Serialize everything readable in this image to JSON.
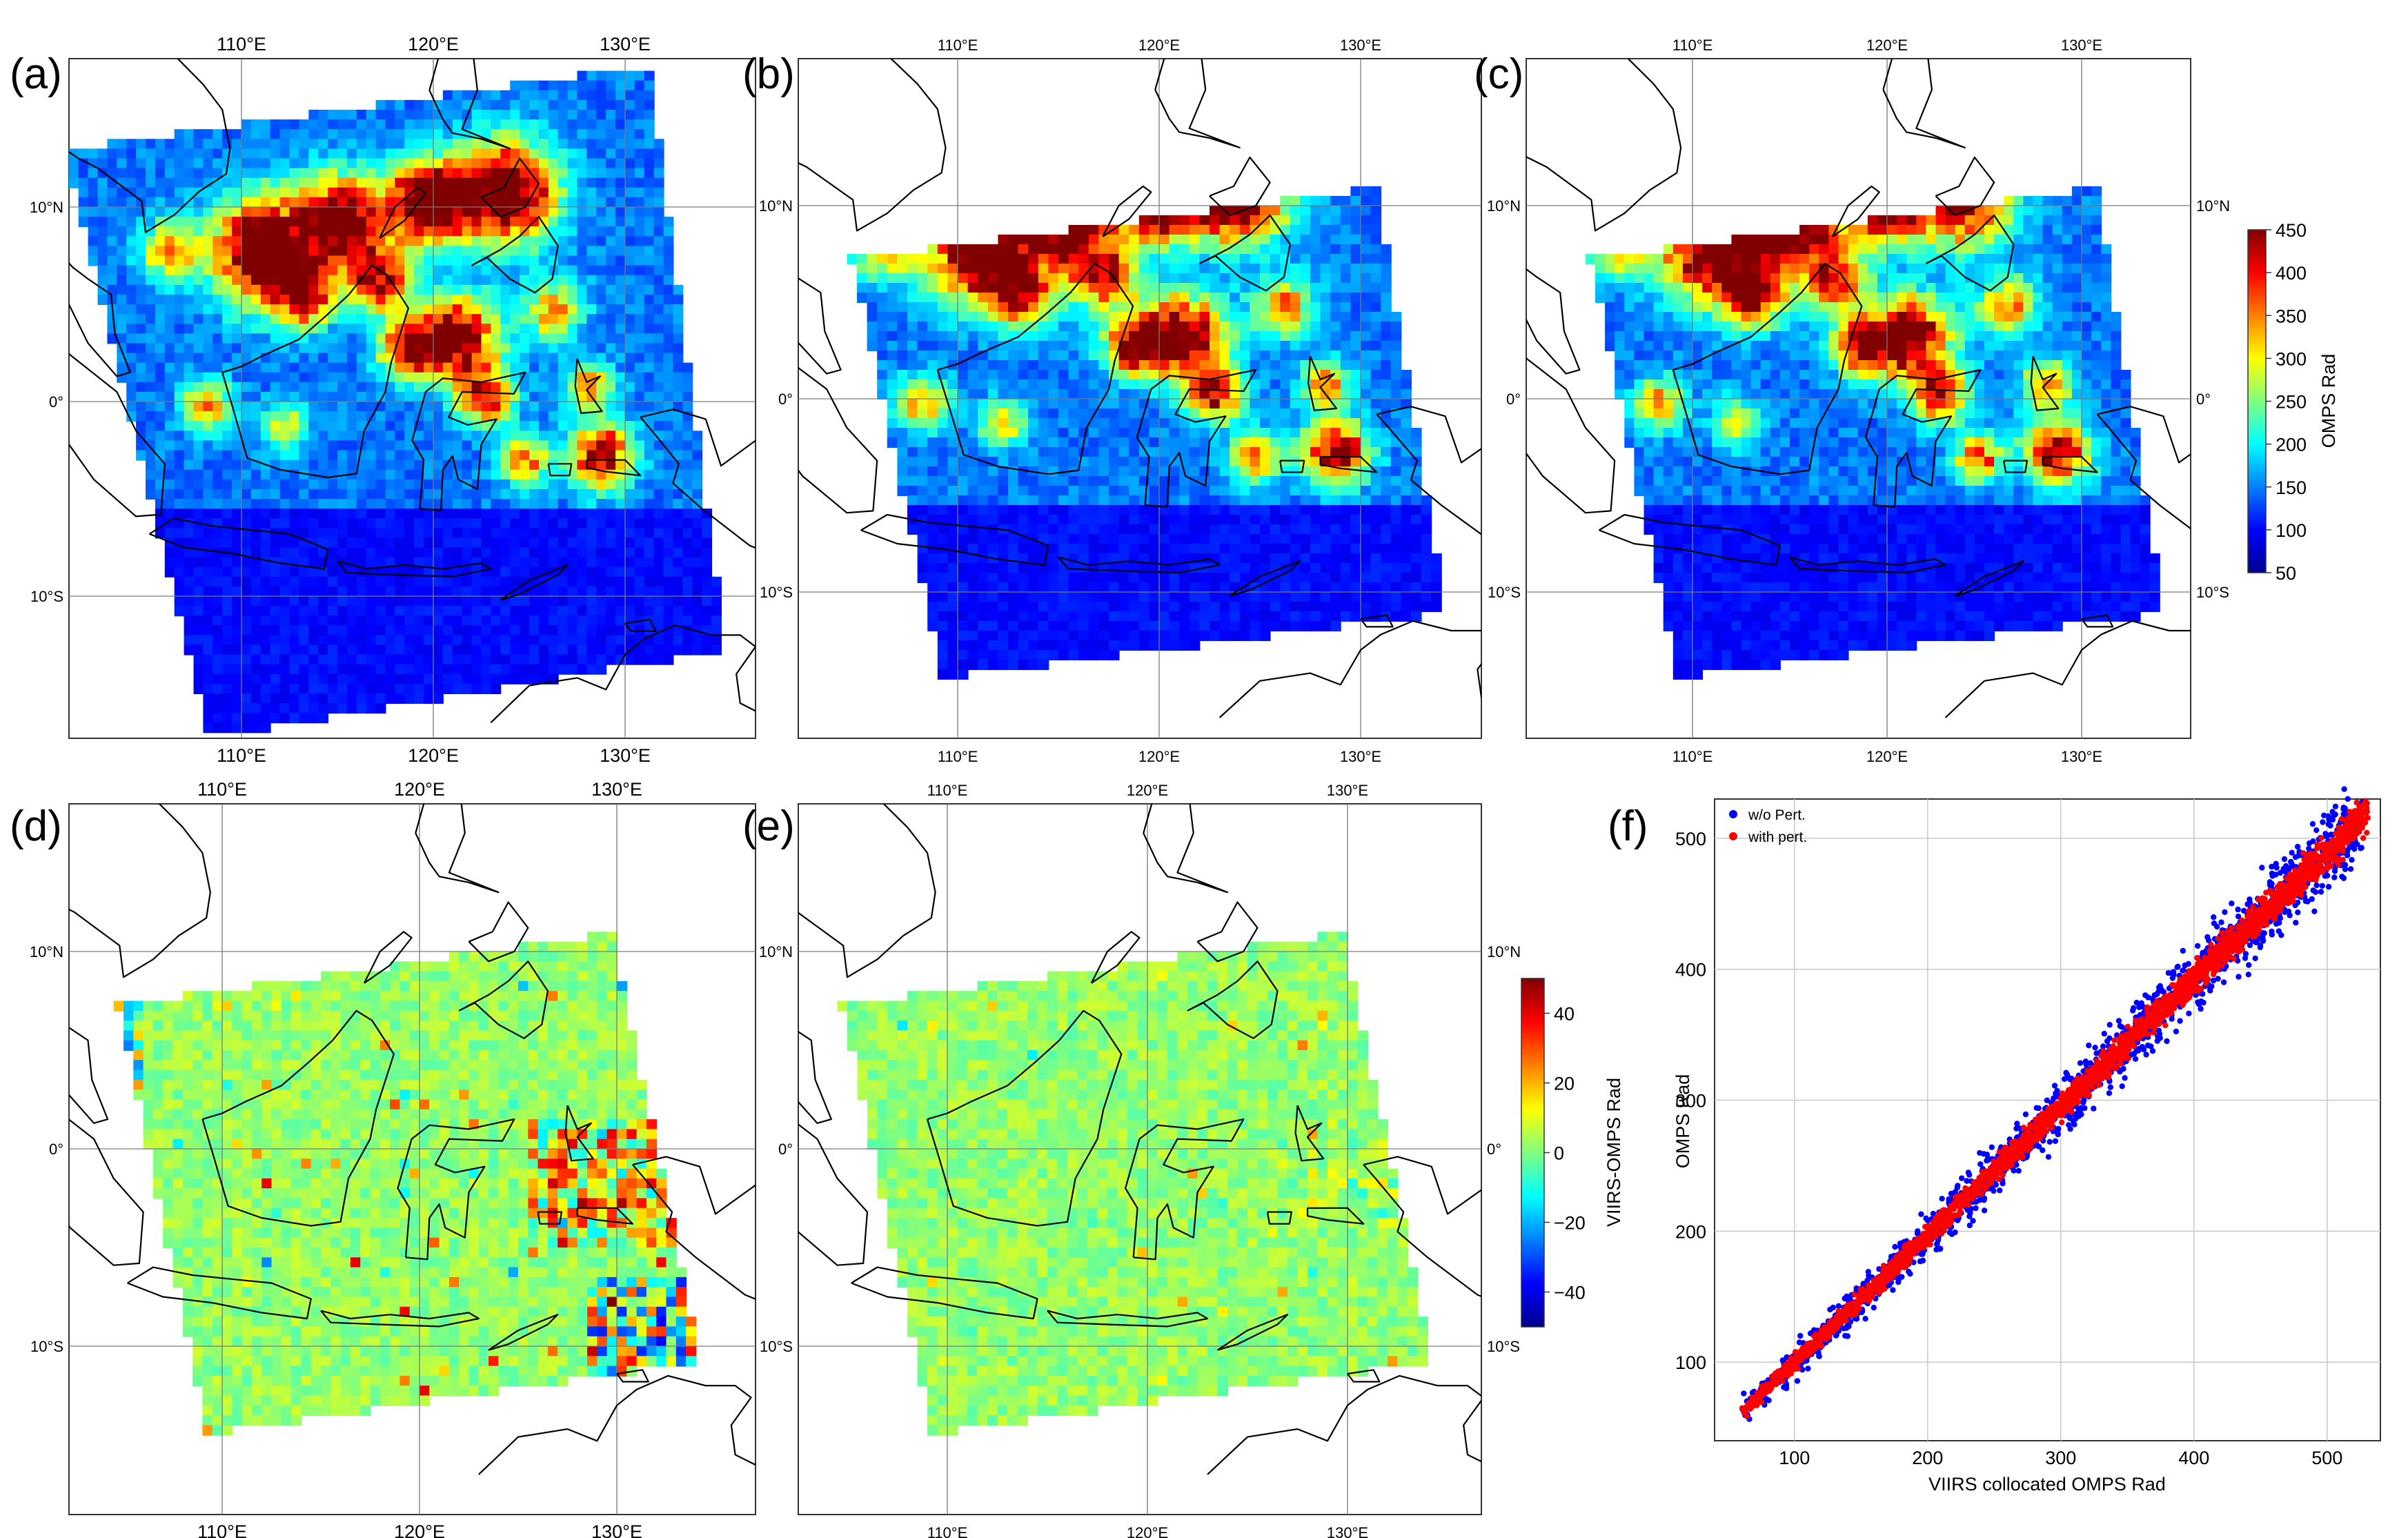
{
  "figure": {
    "panels": [
      {
        "letter": "(a)",
        "kind": "field"
      },
      {
        "letter": "(b)",
        "kind": "field"
      },
      {
        "letter": "(c)",
        "kind": "field"
      },
      {
        "letter": "(d)",
        "kind": "difference"
      },
      {
        "letter": "(e)",
        "kind": "difference"
      },
      {
        "letter": "(f)",
        "kind": "scatter"
      }
    ],
    "map_axes": {
      "lon_ticks": [
        "110°E",
        "120°E",
        "130°E"
      ],
      "lat_ticks": [
        "10°N",
        "0°",
        "10°S"
      ]
    },
    "colorbar_top": {
      "label": "OMPS Rad",
      "ticks": [
        "50",
        "100",
        "150",
        "200",
        "250",
        "300",
        "350",
        "400",
        "450"
      ],
      "range": [
        50,
        450
      ],
      "colormap": "jet",
      "colors": [
        "#00008f",
        "#0000ff",
        "#0080ff",
        "#00ffff",
        "#80ff80",
        "#ffff00",
        "#ff8000",
        "#ff0000",
        "#800000"
      ]
    },
    "colorbar_diff": {
      "label": "VIIRS-OMPS Rad",
      "ticks": [
        "40",
        "20",
        "0",
        "−20",
        "−40"
      ],
      "range": [
        -50,
        50
      ],
      "colormap": "jet",
      "colors": [
        "#00008f",
        "#0000ff",
        "#0080ff",
        "#00ffff",
        "#80ff80",
        "#ffff00",
        "#ff8000",
        "#ff0000",
        "#800000"
      ]
    }
  },
  "chart_data": [
    {
      "panel": "(a)",
      "type": "heatmap",
      "x_ticks": [
        "110°E",
        "120°E",
        "130°E"
      ],
      "y_ticks": [
        "10°N",
        "0°",
        "10°S"
      ],
      "colorbar": "OMPS Rad"
    },
    {
      "panel": "(b)",
      "type": "heatmap",
      "x_ticks": [
        "110°E",
        "120°E",
        "130°E"
      ],
      "y_ticks": [
        "10°N",
        "0°",
        "10°S"
      ],
      "colorbar": "OMPS Rad"
    },
    {
      "panel": "(c)",
      "type": "heatmap",
      "x_ticks": [
        "110°E",
        "120°E",
        "130°E"
      ],
      "y_ticks": [
        "10°N",
        "0°",
        "10°S"
      ],
      "colorbar": "OMPS Rad",
      "colorbar_range": [
        50,
        450
      ]
    },
    {
      "panel": "(d)",
      "type": "heatmap",
      "x_ticks": [
        "110°E",
        "120°E",
        "130°E"
      ],
      "y_ticks": [
        "10°N",
        "0°",
        "10°S"
      ],
      "colorbar": "VIIRS-OMPS Rad"
    },
    {
      "panel": "(e)",
      "type": "heatmap",
      "x_ticks": [
        "110°E",
        "120°E",
        "130°E"
      ],
      "y_ticks": [
        "10°N",
        "0°",
        "10°S"
      ],
      "colorbar": "VIIRS-OMPS Rad",
      "colorbar_range": [
        -50,
        50
      ]
    },
    {
      "panel": "(f)",
      "type": "scatter",
      "xlabel": "VIIRS collocated OMPS Rad",
      "ylabel": "OMPS Rad",
      "xlim": [
        40,
        540
      ],
      "ylim": [
        40,
        530
      ],
      "xticks": [
        100,
        200,
        300,
        400,
        500
      ],
      "yticks": [
        100,
        200,
        300,
        400,
        500
      ],
      "grid": true,
      "legend": "top-left",
      "series": [
        {
          "name": "w/o Pert.",
          "color": "#0000ff",
          "x_range": [
            62,
            525
          ],
          "spread": 16
        },
        {
          "name": "with pert.",
          "color": "#ff0000",
          "x_range": [
            62,
            530
          ],
          "spread": 7
        }
      ]
    }
  ]
}
